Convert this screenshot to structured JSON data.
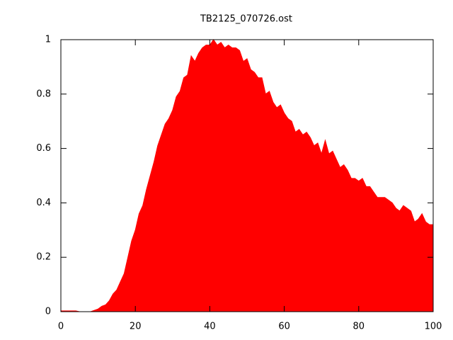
{
  "chart_data": {
    "type": "area",
    "title": "TB2125_070726.ost",
    "color": "#ff0000",
    "x": [
      0,
      1,
      2,
      3,
      4,
      5,
      6,
      7,
      8,
      9,
      10,
      11,
      12,
      13,
      14,
      15,
      16,
      17,
      18,
      19,
      20,
      21,
      22,
      23,
      24,
      25,
      26,
      27,
      28,
      29,
      30,
      31,
      32,
      33,
      34,
      35,
      36,
      37,
      38,
      39,
      40,
      41,
      42,
      43,
      44,
      45,
      46,
      47,
      48,
      49,
      50,
      51,
      52,
      53,
      54,
      55,
      56,
      57,
      58,
      59,
      60,
      61,
      62,
      63,
      64,
      65,
      66,
      67,
      68,
      69,
      70,
      71,
      72,
      73,
      74,
      75,
      76,
      77,
      78,
      79,
      80,
      81,
      82,
      83,
      84,
      85,
      86,
      87,
      88,
      89,
      90,
      91,
      92,
      93,
      94,
      95,
      96,
      97,
      98,
      99,
      100
    ],
    "values": [
      0.003,
      0.003,
      0.003,
      0.003,
      0.003,
      0,
      0,
      0,
      0,
      0.005,
      0.01,
      0.02,
      0.025,
      0.04,
      0.065,
      0.08,
      0.11,
      0.14,
      0.2,
      0.26,
      0.3,
      0.36,
      0.39,
      0.45,
      0.5,
      0.55,
      0.61,
      0.65,
      0.69,
      0.71,
      0.74,
      0.79,
      0.81,
      0.86,
      0.87,
      0.94,
      0.92,
      0.95,
      0.97,
      0.98,
      0.98,
      1.0,
      0.98,
      0.99,
      0.97,
      0.98,
      0.97,
      0.97,
      0.96,
      0.92,
      0.93,
      0.89,
      0.88,
      0.86,
      0.86,
      0.8,
      0.81,
      0.77,
      0.75,
      0.76,
      0.73,
      0.71,
      0.7,
      0.66,
      0.67,
      0.65,
      0.66,
      0.64,
      0.61,
      0.62,
      0.58,
      0.63,
      0.58,
      0.59,
      0.56,
      0.53,
      0.54,
      0.52,
      0.49,
      0.49,
      0.48,
      0.49,
      0.46,
      0.46,
      0.44,
      0.42,
      0.42,
      0.42,
      0.41,
      0.4,
      0.38,
      0.37,
      0.39,
      0.38,
      0.37,
      0.33,
      0.34,
      0.36,
      0.33,
      0.32,
      0.32
    ],
    "xlim": [
      0,
      100
    ],
    "ylim": [
      0,
      1
    ],
    "xticks": [
      0,
      20,
      40,
      60,
      80,
      100
    ],
    "yticks": [
      0,
      0.2,
      0.4,
      0.6,
      0.8,
      1
    ]
  }
}
